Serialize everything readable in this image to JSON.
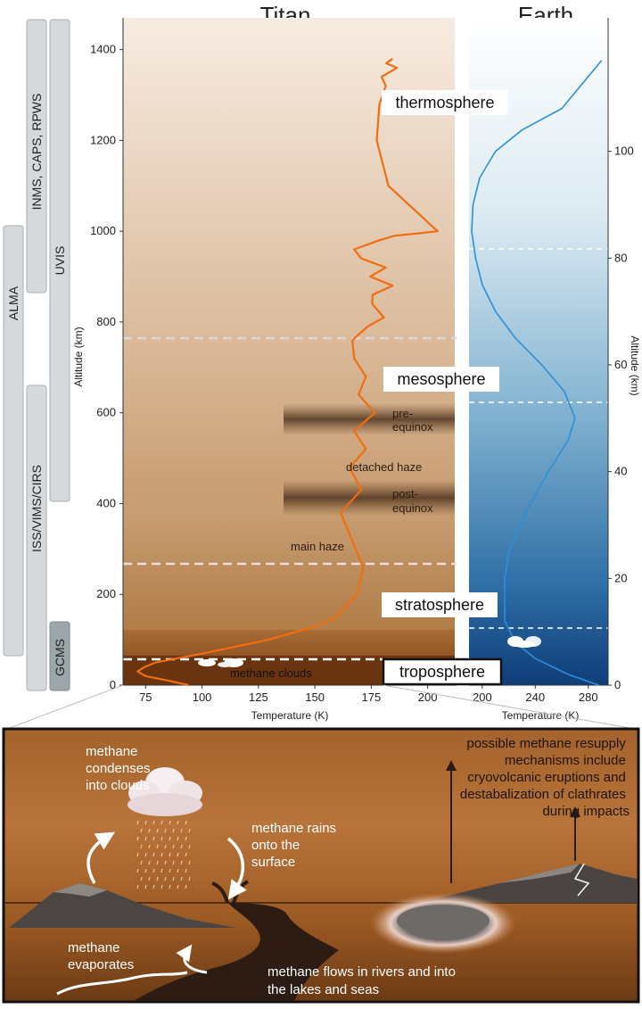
{
  "titles": {
    "titan": "Titan",
    "earth": "Earth"
  },
  "instruments": [
    {
      "id": "alma",
      "label": "ALMA"
    },
    {
      "id": "inms",
      "label": "INMS, CAPS, RPWS"
    },
    {
      "id": "uvis",
      "label": "UVIS"
    },
    {
      "id": "iss",
      "label": "ISS/VIMS/CIRS"
    },
    {
      "id": "gcms",
      "label": "GCMS"
    }
  ],
  "layers": {
    "thermosphere": "thermosphere",
    "mesosphere": "mesosphere",
    "stratosphere": "stratosphere",
    "troposphere": "troposphere",
    "pre_equinox": [
      "pre-",
      "equinox"
    ],
    "post_equinox": [
      "post-",
      "equinox"
    ],
    "detached_haze": "detached haze",
    "main_haze": "main haze",
    "methane_clouds": "methane clouds"
  },
  "axes": {
    "titan_y_label": "Altitude (km)",
    "titan_x_label": "Temperature (K)",
    "earth_y_label": "Altitude (km)",
    "earth_x_label": "Temperature (K)",
    "titan_y_ticks": [
      "0",
      "200",
      "400",
      "600",
      "800",
      "1000",
      "1200",
      "1400"
    ],
    "titan_x_ticks": [
      "75",
      "100",
      "125",
      "150",
      "175",
      "200"
    ],
    "earth_y_ticks": [
      "0",
      "20",
      "40",
      "60",
      "80",
      "100"
    ],
    "earth_x_ticks": [
      "200",
      "240",
      "280"
    ]
  },
  "bottom_panel": {
    "condenses": [
      "methane",
      "condenses",
      "into clouds"
    ],
    "rains": [
      "methane rains",
      "onto the",
      "surface"
    ],
    "evaporates": [
      "methane",
      "evaporates"
    ],
    "flows": [
      "methane flows in rivers and into",
      "the lakes and seas"
    ],
    "resupply": [
      "possible methane resupply",
      "mechanisms include",
      "cryovolcanic eruptions and",
      "destabalization of clathrates",
      "during impacts"
    ]
  },
  "chart_data": [
    {
      "type": "line",
      "title": "Titan",
      "xlabel": "Temperature (K)",
      "ylabel": "Altitude (km)",
      "xlim": [
        65,
        212
      ],
      "ylim": [
        0,
        1470
      ],
      "series": [
        {
          "x": [
            94,
            85,
            75,
            72,
            74,
            80,
            100,
            130,
            150,
            160,
            168,
            172,
            165,
            162,
            170,
            166,
            172,
            168,
            176,
            170,
            172,
            168,
            166,
            174,
            180,
            176,
            175,
            185,
            174,
            182,
            170,
            168,
            178,
            186,
            195,
            205,
            203,
            195,
            178,
            174,
            185,
            192,
            188,
            184,
            182,
            178,
            178,
            182,
            179,
            187,
            181,
            185
          ],
          "y": [
            0,
            10,
            20,
            30,
            40,
            50,
            70,
            100,
            130,
            150,
            200,
            260,
            330,
            380,
            430,
            480,
            520,
            560,
            600,
            640,
            680,
            720,
            760,
            790,
            810,
            840,
            860,
            880,
            900,
            920,
            940,
            960,
            980,
            990,
            995,
            1000,
            980,
            960,
            940,
            920,
            900,
            880,
            860,
            800,
            1100,
            1200,
            1280,
            1320,
            1340,
            1360,
            1370,
            1380
          ]
        }
      ]
    },
    {
      "type": "line",
      "title": "Earth",
      "xlabel": "Temperature (K)",
      "ylabel": "Altitude (km)",
      "xlim": [
        190,
        295
      ],
      "ylim": [
        0,
        125
      ],
      "series": [
        {
          "x": [
            288,
            265,
            240,
            225,
            217,
            217,
            220,
            232,
            250,
            265,
            270,
            262,
            245,
            225,
            210,
            200,
            195,
            192,
            193,
            198,
            210,
            230,
            260,
            290
          ],
          "y": [
            0,
            2,
            5,
            8,
            12,
            20,
            25,
            32,
            40,
            46,
            50,
            55,
            60,
            65,
            70,
            75,
            80,
            85,
            90,
            95,
            100,
            104,
            108,
            117
          ]
        }
      ]
    }
  ]
}
